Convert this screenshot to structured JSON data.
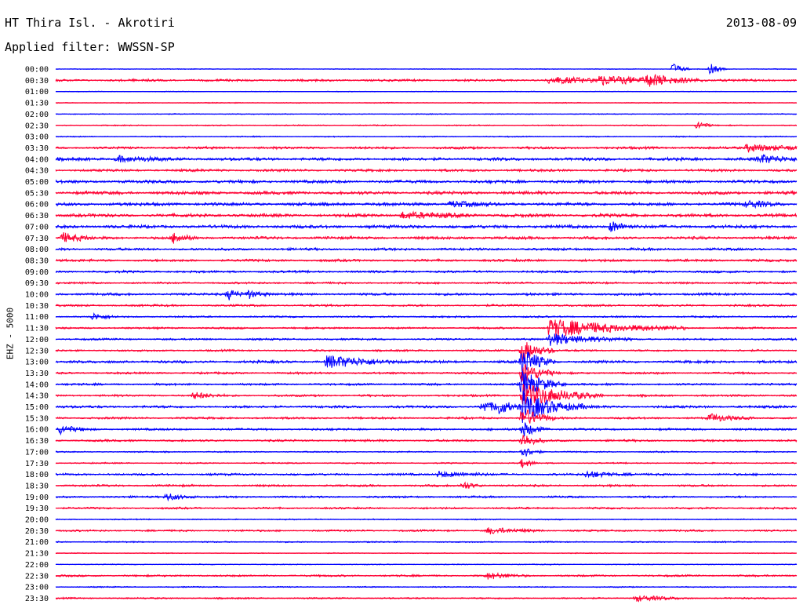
{
  "header": {
    "title": "HT Thira Isl. - Akrotiri",
    "date": "2013-08-09",
    "filter_label": "Applied filter:",
    "filter_value": "WWSSN-SP",
    "channel": "EHZ - 5000"
  },
  "colors": {
    "even": "#0000ff",
    "odd": "#ff0033"
  },
  "chart_data": {
    "type": "line",
    "title": "HT Thira Isl. - Akrotiri",
    "ylabel": "EHZ - 5000",
    "rows": [
      "00:00",
      "00:30",
      "01:00",
      "01:30",
      "02:00",
      "02:30",
      "03:00",
      "03:30",
      "04:00",
      "04:30",
      "05:00",
      "05:30",
      "06:00",
      "06:30",
      "07:00",
      "07:30",
      "08:00",
      "08:30",
      "09:00",
      "09:30",
      "10:00",
      "10:30",
      "11:00",
      "11:30",
      "12:00",
      "12:30",
      "13:00",
      "13:30",
      "14:00",
      "14:30",
      "15:00",
      "15:30",
      "16:00",
      "16:30",
      "17:00",
      "17:30",
      "18:00",
      "18:30",
      "19:00",
      "19:30",
      "20:00",
      "20:30",
      "21:00",
      "21:30",
      "22:00",
      "22:30",
      "23:00",
      "23:30"
    ],
    "noise_level": [
      0.4,
      1.2,
      0.4,
      0.5,
      0.5,
      0.6,
      0.6,
      1.3,
      1.6,
      1.3,
      1.6,
      1.7,
      1.7,
      1.7,
      1.7,
      1.5,
      1.3,
      1.3,
      1.2,
      1.0,
      1.3,
      1.1,
      0.9,
      1.0,
      1.0,
      1.0,
      1.4,
      1.1,
      1.1,
      1.1,
      1.3,
      1.1,
      1.1,
      1.1,
      0.7,
      0.7,
      1.1,
      1.1,
      1.0,
      1.0,
      0.6,
      1.0,
      0.7,
      0.5,
      0.5,
      1.0,
      0.6,
      0.8
    ],
    "events": [
      {
        "row": "00:00",
        "time_min": 25.0,
        "amp": 8,
        "dur": 0.3
      },
      {
        "row": "00:00",
        "time_min": 26.5,
        "amp": 7,
        "dur": 0.3
      },
      {
        "row": "00:30",
        "time_min": 20.0,
        "amp": 4,
        "dur": 2.0
      },
      {
        "row": "00:30",
        "time_min": 22.0,
        "amp": 5,
        "dur": 2.0
      },
      {
        "row": "00:30",
        "time_min": 24.0,
        "amp": 6,
        "dur": 1.0
      },
      {
        "row": "02:30",
        "time_min": 26.0,
        "amp": 6,
        "dur": 0.3
      },
      {
        "row": "03:30",
        "time_min": 28.0,
        "amp": 5,
        "dur": 1.5
      },
      {
        "row": "04:00",
        "time_min": 2.5,
        "amp": 4,
        "dur": 1.0
      },
      {
        "row": "04:00",
        "time_min": 28.5,
        "amp": 5,
        "dur": 1.0
      },
      {
        "row": "06:00",
        "time_min": 16.0,
        "amp": 4,
        "dur": 0.8
      },
      {
        "row": "06:00",
        "time_min": 28.0,
        "amp": 4,
        "dur": 0.8
      },
      {
        "row": "06:30",
        "time_min": 14.0,
        "amp": 4,
        "dur": 1.5
      },
      {
        "row": "07:00",
        "time_min": 22.5,
        "amp": 8,
        "dur": 0.4
      },
      {
        "row": "07:30",
        "time_min": 0.3,
        "amp": 6,
        "dur": 0.6
      },
      {
        "row": "07:30",
        "time_min": 4.8,
        "amp": 7,
        "dur": 0.4
      },
      {
        "row": "10:00",
        "time_min": 7.0,
        "amp": 7,
        "dur": 0.4
      },
      {
        "row": "10:00",
        "time_min": 7.8,
        "amp": 5,
        "dur": 0.4
      },
      {
        "row": "11:00",
        "time_min": 1.5,
        "amp": 4,
        "dur": 0.5
      },
      {
        "row": "11:30",
        "time_min": 20.0,
        "amp": 12,
        "dur": 2.5
      },
      {
        "row": "12:00",
        "time_min": 20.0,
        "amp": 8,
        "dur": 1.5
      },
      {
        "row": "12:30",
        "time_min": 18.9,
        "amp": 14,
        "dur": 0.6
      },
      {
        "row": "13:00",
        "time_min": 11.0,
        "amp": 8,
        "dur": 1.5
      },
      {
        "row": "13:00",
        "time_min": 18.9,
        "amp": 18,
        "dur": 0.6
      },
      {
        "row": "13:30",
        "time_min": 18.9,
        "amp": 16,
        "dur": 0.6
      },
      {
        "row": "14:00",
        "time_min": 18.9,
        "amp": 18,
        "dur": 0.8
      },
      {
        "row": "14:30",
        "time_min": 18.9,
        "amp": 16,
        "dur": 1.5
      },
      {
        "row": "14:30",
        "time_min": 5.6,
        "amp": 4,
        "dur": 0.6
      },
      {
        "row": "15:00",
        "time_min": 18.9,
        "amp": 18,
        "dur": 1.2
      },
      {
        "row": "15:00",
        "time_min": 17.3,
        "amp": 8,
        "dur": 0.5
      },
      {
        "row": "15:00",
        "time_min": 17.9,
        "amp": 8,
        "dur": 0.5
      },
      {
        "row": "15:30",
        "time_min": 18.9,
        "amp": 14,
        "dur": 0.6
      },
      {
        "row": "15:30",
        "time_min": 26.5,
        "amp": 5,
        "dur": 0.8
      },
      {
        "row": "16:00",
        "time_min": 18.9,
        "amp": 10,
        "dur": 0.5
      },
      {
        "row": "16:00",
        "time_min": 0.2,
        "amp": 5,
        "dur": 0.6
      },
      {
        "row": "16:30",
        "time_min": 18.9,
        "amp": 10,
        "dur": 0.4
      },
      {
        "row": "17:00",
        "time_min": 18.9,
        "amp": 8,
        "dur": 0.4
      },
      {
        "row": "17:30",
        "time_min": 18.9,
        "amp": 6,
        "dur": 0.3
      },
      {
        "row": "18:00",
        "time_min": 15.5,
        "amp": 4,
        "dur": 1.0
      },
      {
        "row": "18:00",
        "time_min": 21.5,
        "amp": 4,
        "dur": 1.0
      },
      {
        "row": "18:30",
        "time_min": 16.5,
        "amp": 5,
        "dur": 0.4
      },
      {
        "row": "19:00",
        "time_min": 4.5,
        "amp": 5,
        "dur": 0.6
      },
      {
        "row": "20:30",
        "time_min": 17.5,
        "amp": 4,
        "dur": 1.0
      },
      {
        "row": "22:30",
        "time_min": 17.5,
        "amp": 4,
        "dur": 0.8
      },
      {
        "row": "23:30",
        "time_min": 23.5,
        "amp": 4,
        "dur": 1.0
      }
    ]
  }
}
